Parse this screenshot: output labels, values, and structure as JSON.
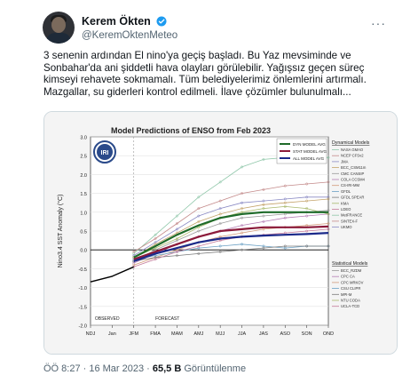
{
  "author": {
    "name": "Kerem Ökten",
    "handle": "@KeremOktenMeteo"
  },
  "tweet": {
    "text": "3 senenin ardından El nino'ya geçiş başladı. Bu Yaz mevsiminde ve Sonbahar'da ani şiddetli hava olayları görülebilir. Yağışsız geçen süreç kimseyi rehavete sokmamalı. Tüm belediyelerimiz önlemlerini artırmalı. Mazgallar, su giderleri kontrol edilmeli. İlave çözümler bulunulmalı..."
  },
  "meta": {
    "time": "ÖÖ 8:27 · 16 Mar 2023 · ",
    "views": "65,5 B",
    "views_label": " Görüntülenme"
  },
  "colors": {
    "verified": "#1d9bf0",
    "dynamical_avg": "#1f6b2a",
    "statistical_avg": "#8b1a3a",
    "all_avg": "#1b2a8a",
    "observed": "#000000"
  },
  "chart_data": {
    "type": "line",
    "title": "Model Predictions of ENSO from Feb 2023",
    "ylabel": "Nino3.4 SST Anomaly (°C)",
    "x": [
      "NDJ",
      "Jan",
      "JFM",
      "FMA",
      "MAM",
      "AMJ",
      "MJJ",
      "JJA",
      "JAS",
      "ASO",
      "SON",
      "OND"
    ],
    "ylim": [
      -2.0,
      3.0
    ],
    "yticks": [
      "3.0",
      "2.5",
      "2.0",
      "1.5",
      "1.0",
      "0.5",
      "0.0",
      "-0.5",
      "-1.0",
      "-1.5",
      "-2.0"
    ],
    "logo": "IRI",
    "annotations": [
      "OBSERVED",
      "FORECAST"
    ],
    "legend_averages": [
      "DYN MODEL AVG",
      "STAT MODEL AVG",
      "ALL MODEL AVG"
    ],
    "dynamical_header": "Dynamical Models",
    "dynamical_models": [
      "NASA GMAO",
      "NCEP CFSv2",
      "JMA",
      "BCC_CSM11m",
      "CMC CANSIP",
      "COLA CCSM4",
      "CS-IRI-MM",
      "GFDL",
      "GFDL SPEAR",
      "KMA",
      "LDEO",
      "MetFRANCE",
      "SINTEX-F",
      "UKMO"
    ],
    "statistical_header": "Statistical Models",
    "statistical_models": [
      "BCC_RZDM",
      "CPC CA",
      "CPC MRKOV",
      "CSU CLIPR",
      "MPI-M",
      "NTU CODA",
      "UCLA-TCD"
    ],
    "observed": [
      {
        "x": "NDJ",
        "y": -0.85
      },
      {
        "x": "Jan",
        "y": -0.7
      }
    ],
    "series": [
      {
        "name": "DYN MODEL AVG",
        "values": [
          null,
          null,
          -0.2,
          0.1,
          0.4,
          0.65,
          0.85,
          0.95,
          1.0,
          1.0,
          1.0,
          1.0
        ]
      },
      {
        "name": "STAT MODEL AVG",
        "values": [
          null,
          null,
          -0.25,
          -0.05,
          0.15,
          0.35,
          0.5,
          0.55,
          0.6,
          0.6,
          0.6,
          0.62
        ]
      },
      {
        "name": "ALL MODEL AVG",
        "values": [
          null,
          null,
          -0.3,
          -0.1,
          0.05,
          0.2,
          0.3,
          0.35,
          0.38,
          0.4,
          0.42,
          0.45
        ]
      }
    ],
    "model_lines": [
      [
        null,
        null,
        -0.1,
        0.4,
        0.9,
        1.4,
        1.8,
        2.2,
        2.4,
        2.45,
        2.45,
        2.45
      ],
      [
        null,
        null,
        -0.05,
        0.3,
        0.7,
        1.1,
        1.3,
        1.5,
        1.6,
        1.7,
        1.75,
        1.8
      ],
      [
        null,
        null,
        -0.15,
        0.2,
        0.55,
        0.9,
        1.1,
        1.25,
        1.3,
        1.35,
        1.4,
        1.4
      ],
      [
        null,
        null,
        -0.2,
        0.15,
        0.45,
        0.75,
        0.95,
        1.1,
        1.2,
        1.25,
        1.3,
        1.35
      ],
      [
        null,
        null,
        -0.3,
        0.0,
        0.25,
        0.5,
        0.7,
        0.85,
        0.9,
        0.95,
        1.0,
        1.05
      ],
      [
        null,
        null,
        -0.35,
        -0.1,
        0.15,
        0.35,
        0.5,
        0.65,
        0.75,
        0.85,
        0.9,
        0.95
      ],
      [
        null,
        null,
        -0.4,
        -0.2,
        0.0,
        0.2,
        0.35,
        0.45,
        0.55,
        0.6,
        0.65,
        0.7
      ],
      [
        null,
        null,
        -0.25,
        -0.15,
        -0.05,
        0.05,
        0.1,
        0.15,
        0.1,
        0.05,
        0.1,
        0.1
      ],
      [
        null,
        null,
        -0.3,
        -0.2,
        -0.15,
        -0.1,
        -0.05,
        0.0,
        0.05,
        0.1,
        0.1,
        0.1
      ],
      [
        null,
        null,
        -0.2,
        0.05,
        0.3,
        0.6,
        0.85,
        1.0,
        1.1,
        1.15,
        1.1,
        0.95
      ],
      [
        null,
        null,
        -0.45,
        -0.25,
        -0.05,
        0.1,
        0.25,
        0.35,
        0.4,
        0.45,
        0.5,
        0.55
      ]
    ]
  }
}
